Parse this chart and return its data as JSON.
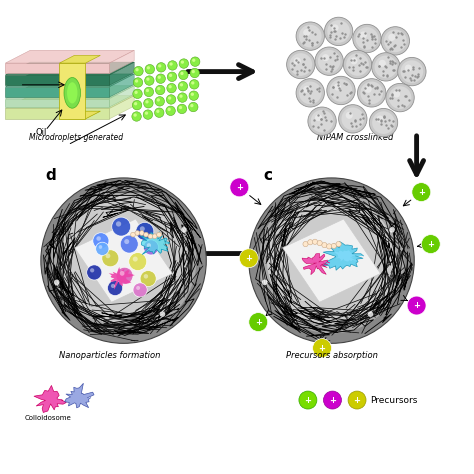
{
  "bg_color": "#ffffff",
  "arrow_color": "#111111",
  "label_a": "Microdroplets generated",
  "label_b": "NIPAM crosslinked",
  "label_c": "c",
  "label_d": "d",
  "label_c_title": "Precursors absorption",
  "label_d_title": "Nanoparticles formation",
  "label_precursors": "Precursors",
  "figsize": [
    4.74,
    4.74
  ],
  "dpi": 100
}
